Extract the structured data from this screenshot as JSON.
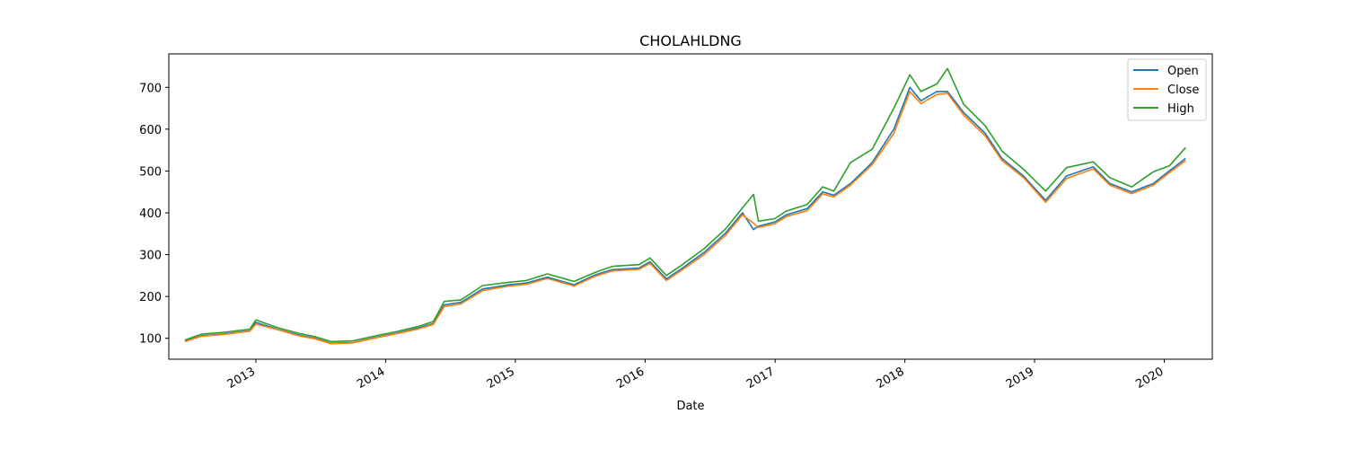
{
  "chart_data": {
    "type": "line",
    "title": "CHOLAHLDNG",
    "xlabel": "Date",
    "ylabel": "",
    "xlim": [
      "2012-05-01",
      "2020-05-15"
    ],
    "ylim": [
      50,
      780
    ],
    "x_ticks": [
      "2013",
      "2014",
      "2015",
      "2016",
      "2017",
      "2018",
      "2019",
      "2020"
    ],
    "y_ticks": [
      100,
      200,
      300,
      400,
      500,
      600,
      700
    ],
    "grid": false,
    "legend_position": "top-right",
    "series": [
      {
        "name": "Open",
        "color": "#1f77b4"
      },
      {
        "name": "Close",
        "color": "#ff7f0e"
      },
      {
        "name": "High",
        "color": "#2ca02c"
      }
    ],
    "x": [
      "2012-06-15",
      "2012-08-01",
      "2012-10-01",
      "2012-12-15",
      "2013-01-01",
      "2013-03-01",
      "2013-05-01",
      "2013-06-15",
      "2013-08-01",
      "2013-10-01",
      "2013-12-15",
      "2014-02-01",
      "2014-04-01",
      "2014-05-15",
      "2014-06-15",
      "2014-08-01",
      "2014-10-01",
      "2014-12-15",
      "2015-02-01",
      "2015-04-01",
      "2015-06-15",
      "2015-08-15",
      "2015-10-01",
      "2015-12-15",
      "2016-01-15",
      "2016-03-01",
      "2016-04-15",
      "2016-06-15",
      "2016-08-15",
      "2016-10-01",
      "2016-11-01",
      "2016-11-15",
      "2016-12-31",
      "2017-02-01",
      "2017-04-01",
      "2017-05-15",
      "2017-06-15",
      "2017-08-01",
      "2017-10-01",
      "2017-12-01",
      "2018-01-15",
      "2018-02-15",
      "2018-04-01",
      "2018-05-01",
      "2018-06-15",
      "2018-08-15",
      "2018-10-01",
      "2018-12-01",
      "2019-02-01",
      "2019-04-01",
      "2019-06-15",
      "2019-08-01",
      "2019-10-01",
      "2019-12-01",
      "2020-01-15",
      "2020-03-01"
    ],
    "open": [
      93,
      106,
      110,
      118,
      138,
      122,
      108,
      100,
      88,
      90,
      104,
      112,
      124,
      135,
      180,
      186,
      218,
      228,
      232,
      246,
      228,
      252,
      264,
      268,
      283,
      242,
      268,
      305,
      352,
      400,
      360,
      368,
      378,
      395,
      410,
      450,
      442,
      470,
      520,
      600,
      700,
      668,
      690,
      690,
      640,
      590,
      530,
      488,
      430,
      488,
      510,
      470,
      450,
      470,
      500,
      530
    ],
    "close": [
      92,
      105,
      109,
      117,
      134,
      121,
      106,
      99,
      87,
      89,
      103,
      111,
      122,
      133,
      176,
      182,
      214,
      225,
      229,
      243,
      225,
      249,
      261,
      265,
      279,
      238,
      264,
      300,
      347,
      395,
      375,
      365,
      374,
      391,
      405,
      445,
      438,
      466,
      515,
      590,
      690,
      661,
      683,
      686,
      634,
      584,
      525,
      484,
      425,
      482,
      505,
      466,
      446,
      466,
      496,
      525
    ],
    "high": [
      96,
      110,
      114,
      122,
      144,
      126,
      112,
      104,
      92,
      94,
      108,
      116,
      128,
      140,
      188,
      192,
      226,
      234,
      238,
      254,
      236,
      258,
      272,
      276,
      292,
      250,
      276,
      314,
      362,
      412,
      444,
      380,
      386,
      404,
      420,
      462,
      452,
      520,
      552,
      650,
      730,
      690,
      708,
      745,
      660,
      608,
      548,
      504,
      452,
      508,
      522,
      484,
      462,
      498,
      512,
      556
    ]
  }
}
